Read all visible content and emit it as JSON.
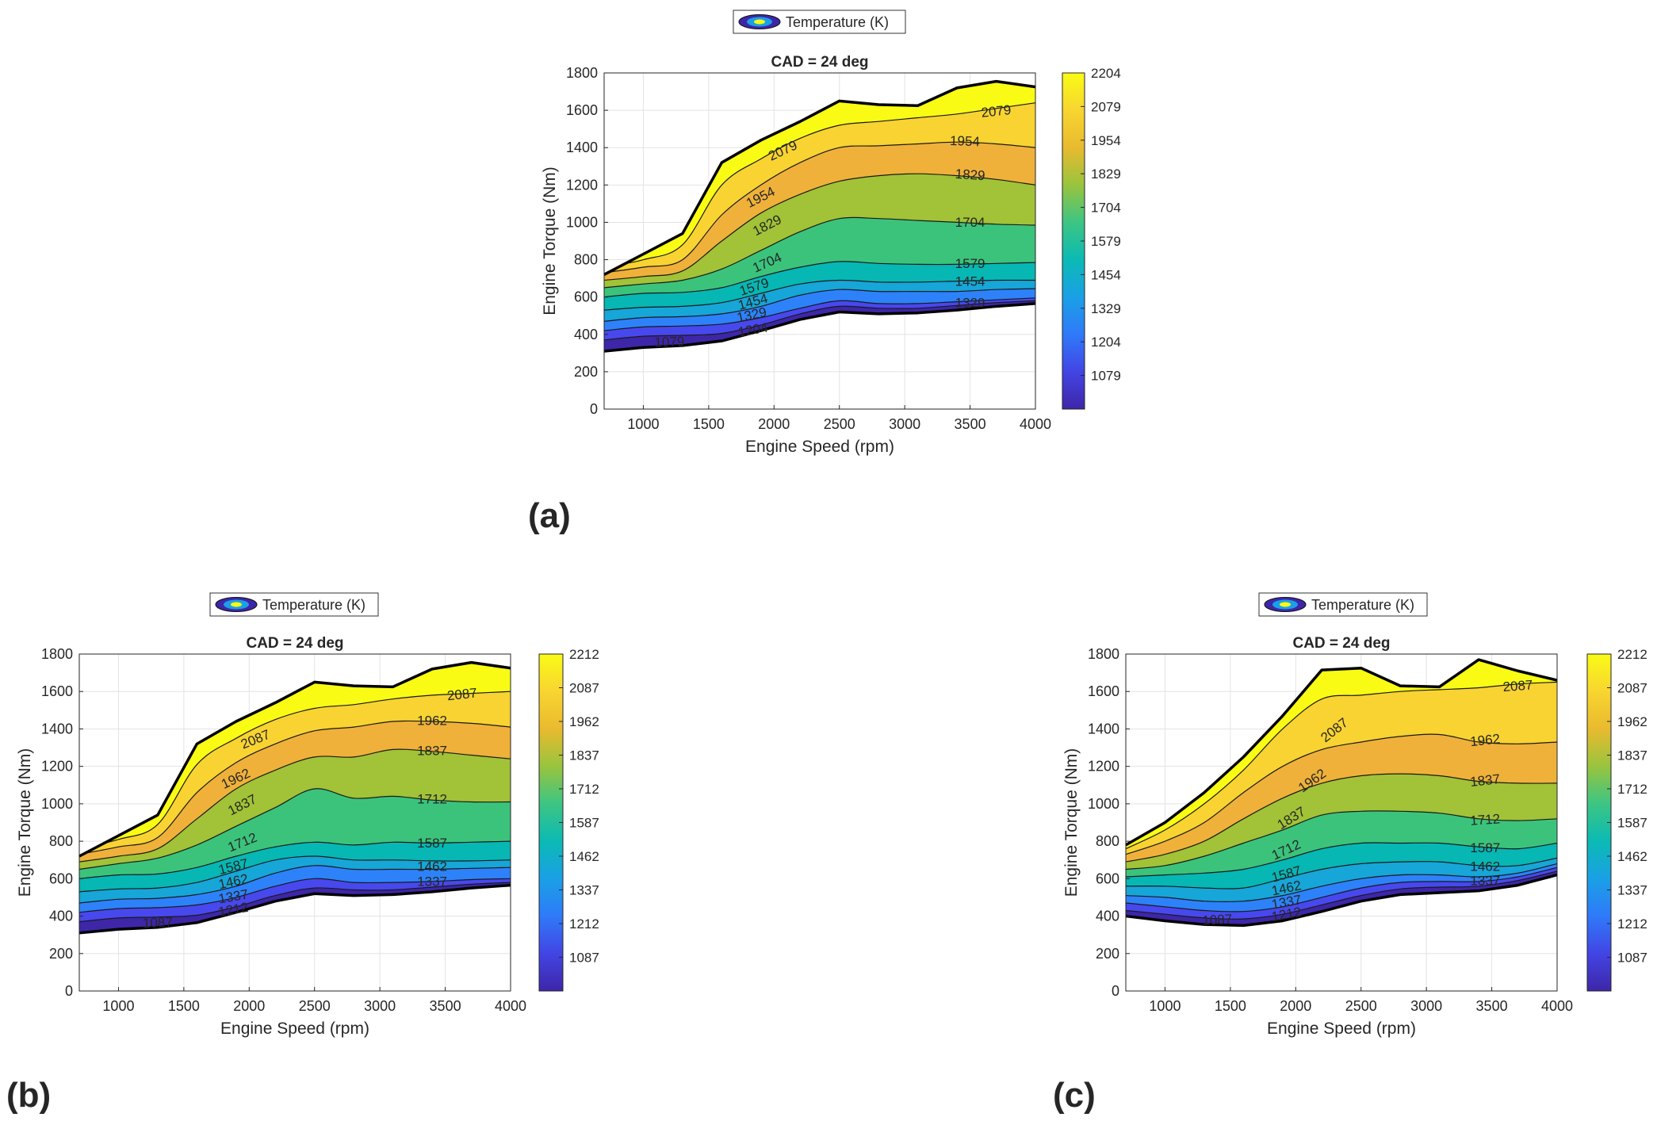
{
  "chart_data": [
    {
      "id": "a",
      "panel_label": "(a)",
      "type": "contourf",
      "title": "CAD = 24 deg",
      "xlabel": "Engine Speed (rpm)",
      "ylabel": "Engine Torque (Nm)",
      "xlim": [
        700,
        4000
      ],
      "ylim": [
        0,
        1800
      ],
      "xticks": [
        1000,
        1500,
        2000,
        2500,
        3000,
        3500,
        4000
      ],
      "yticks": [
        0,
        200,
        400,
        600,
        800,
        1000,
        1200,
        1400,
        1600,
        1800
      ],
      "grid": true,
      "legend": {
        "label": "Temperature (K)",
        "position": "top-center"
      },
      "colorbar": {
        "min": 954,
        "max": 2204,
        "ticks": [
          1079,
          1204,
          1329,
          1454,
          1579,
          1704,
          1829,
          1954,
          2079,
          2204
        ]
      },
      "levels": [
        1079,
        1204,
        1329,
        1454,
        1579,
        1704,
        1829,
        1954,
        2079
      ],
      "x": [
        700,
        1000,
        1300,
        1600,
        1900,
        2200,
        2500,
        2800,
        3100,
        3400,
        3700,
        4000
      ],
      "boundary_upper": [
        720,
        830,
        940,
        1320,
        1440,
        1540,
        1650,
        1630,
        1625,
        1720,
        1755,
        1725
      ],
      "boundary_lower": [
        310,
        330,
        340,
        365,
        420,
        480,
        520,
        510,
        515,
        530,
        550,
        565
      ],
      "contours": [
        {
          "level": 1079,
          "y": [
            370,
            390,
            395,
            405,
            450,
            510,
            550,
            540,
            540,
            555,
            570,
            580
          ]
        },
        {
          "level": 1204,
          "y": [
            420,
            440,
            445,
            455,
            490,
            540,
            580,
            565,
            565,
            575,
            585,
            595
          ]
        },
        {
          "level": 1329,
          "y": [
            470,
            490,
            495,
            510,
            550,
            610,
            640,
            630,
            630,
            630,
            640,
            645
          ]
        },
        {
          "level": 1454,
          "y": [
            530,
            545,
            550,
            570,
            620,
            670,
            690,
            680,
            680,
            685,
            690,
            690
          ]
        },
        {
          "level": 1579,
          "y": [
            600,
            620,
            625,
            650,
            710,
            760,
            790,
            780,
            775,
            775,
            780,
            785
          ]
        },
        {
          "level": 1704,
          "y": [
            650,
            670,
            690,
            750,
            850,
            950,
            1020,
            1020,
            1010,
            1000,
            990,
            985
          ]
        },
        {
          "level": 1829,
          "y": [
            690,
            710,
            740,
            900,
            1050,
            1150,
            1220,
            1250,
            1260,
            1250,
            1230,
            1200
          ]
        },
        {
          "level": 1954,
          "y": [
            730,
            760,
            800,
            1040,
            1200,
            1320,
            1400,
            1410,
            1420,
            1430,
            1420,
            1400
          ]
        },
        {
          "level": 2079,
          "y": [
            760,
            800,
            880,
            1200,
            1340,
            1450,
            1520,
            1540,
            1560,
            1580,
            1610,
            1640
          ]
        }
      ],
      "contour_labels": [
        {
          "text": "2079",
          "x": 3700,
          "y": 1590,
          "angle": -6
        },
        {
          "text": "1954",
          "x": 3460,
          "y": 1430,
          "angle": 2
        },
        {
          "text": "1829",
          "x": 3500,
          "y": 1250,
          "angle": 4
        },
        {
          "text": "1704",
          "x": 3500,
          "y": 995,
          "angle": 0
        },
        {
          "text": "1579",
          "x": 3500,
          "y": 775,
          "angle": 0
        },
        {
          "text": "1454",
          "x": 3500,
          "y": 680,
          "angle": 0
        },
        {
          "text": "1329",
          "x": 3500,
          "y": 565,
          "angle": 0
        },
        {
          "text": "2079",
          "x": 2070,
          "y": 1380,
          "angle": -25
        },
        {
          "text": "1954",
          "x": 1900,
          "y": 1130,
          "angle": -27
        },
        {
          "text": "1829",
          "x": 1950,
          "y": 980,
          "angle": -27
        },
        {
          "text": "1704",
          "x": 1950,
          "y": 780,
          "angle": -24
        },
        {
          "text": "1579",
          "x": 1850,
          "y": 650,
          "angle": -18
        },
        {
          "text": "1454",
          "x": 1840,
          "y": 570,
          "angle": -15
        },
        {
          "text": "1329",
          "x": 1830,
          "y": 500,
          "angle": -12
        },
        {
          "text": "1204",
          "x": 1840,
          "y": 420,
          "angle": -10
        },
        {
          "text": "1079",
          "x": 1200,
          "y": 355,
          "angle": -2
        }
      ]
    },
    {
      "id": "b",
      "panel_label": "(b)",
      "type": "contourf",
      "title": "CAD = 24 deg",
      "xlabel": "Engine Speed (rpm)",
      "ylabel": "Engine Torque (Nm)",
      "xlim": [
        700,
        4000
      ],
      "ylim": [
        0,
        1800
      ],
      "xticks": [
        1000,
        1500,
        2000,
        2500,
        3000,
        3500,
        4000
      ],
      "yticks": [
        0,
        200,
        400,
        600,
        800,
        1000,
        1200,
        1400,
        1600,
        1800
      ],
      "grid": true,
      "legend": {
        "label": "Temperature (K)",
        "position": "top-center"
      },
      "colorbar": {
        "min": 962,
        "max": 2212,
        "ticks": [
          1087,
          1212,
          1337,
          1462,
          1587,
          1712,
          1837,
          1962,
          2087,
          2212
        ]
      },
      "levels": [
        1087,
        1212,
        1337,
        1462,
        1587,
        1712,
        1837,
        1962,
        2087
      ],
      "x": [
        700,
        1000,
        1300,
        1600,
        1900,
        2200,
        2500,
        2800,
        3100,
        3400,
        3700,
        4000
      ],
      "boundary_upper": [
        720,
        830,
        940,
        1320,
        1440,
        1540,
        1650,
        1630,
        1625,
        1720,
        1755,
        1725
      ],
      "boundary_lower": [
        310,
        330,
        340,
        365,
        420,
        480,
        520,
        510,
        515,
        530,
        550,
        565
      ],
      "contours": [
        {
          "level": 1087,
          "y": [
            370,
            390,
            395,
            405,
            450,
            510,
            550,
            540,
            540,
            555,
            570,
            580
          ]
        },
        {
          "level": 1212,
          "y": [
            420,
            440,
            445,
            460,
            500,
            560,
            600,
            580,
            580,
            585,
            595,
            600
          ]
        },
        {
          "level": 1337,
          "y": [
            470,
            490,
            495,
            515,
            560,
            630,
            670,
            650,
            650,
            650,
            655,
            660
          ]
        },
        {
          "level": 1462,
          "y": [
            530,
            545,
            550,
            580,
            640,
            700,
            720,
            700,
            700,
            695,
            695,
            700
          ]
        },
        {
          "level": 1587,
          "y": [
            600,
            620,
            625,
            660,
            720,
            770,
            795,
            780,
            795,
            790,
            795,
            800
          ]
        },
        {
          "level": 1712,
          "y": [
            650,
            680,
            710,
            780,
            880,
            980,
            1080,
            1030,
            1040,
            1020,
            1010,
            1010
          ]
        },
        {
          "level": 1837,
          "y": [
            690,
            720,
            760,
            920,
            1080,
            1180,
            1250,
            1250,
            1290,
            1280,
            1260,
            1240
          ]
        },
        {
          "level": 1962,
          "y": [
            730,
            770,
            820,
            1060,
            1220,
            1320,
            1390,
            1410,
            1440,
            1440,
            1430,
            1410
          ]
        },
        {
          "level": 2087,
          "y": [
            760,
            810,
            890,
            1210,
            1350,
            1450,
            1510,
            1530,
            1560,
            1580,
            1590,
            1600
          ]
        }
      ],
      "contour_labels": [
        {
          "text": "2087",
          "x": 3630,
          "y": 1580,
          "angle": -6
        },
        {
          "text": "1962",
          "x": 3400,
          "y": 1440,
          "angle": 0
        },
        {
          "text": "1837",
          "x": 3400,
          "y": 1280,
          "angle": 0
        },
        {
          "text": "1712",
          "x": 3400,
          "y": 1020,
          "angle": 0
        },
        {
          "text": "1587",
          "x": 3400,
          "y": 785,
          "angle": 0
        },
        {
          "text": "1462",
          "x": 3400,
          "y": 660,
          "angle": 0
        },
        {
          "text": "1337",
          "x": 3400,
          "y": 580,
          "angle": 0
        },
        {
          "text": "2087",
          "x": 2050,
          "y": 1340,
          "angle": -22
        },
        {
          "text": "1962",
          "x": 1900,
          "y": 1130,
          "angle": -25
        },
        {
          "text": "1837",
          "x": 1950,
          "y": 990,
          "angle": -27
        },
        {
          "text": "1712",
          "x": 1950,
          "y": 790,
          "angle": -22
        },
        {
          "text": "1587",
          "x": 1880,
          "y": 660,
          "angle": -14
        },
        {
          "text": "1462",
          "x": 1880,
          "y": 580,
          "angle": -12
        },
        {
          "text": "1337",
          "x": 1880,
          "y": 500,
          "angle": -10
        },
        {
          "text": "1212",
          "x": 1880,
          "y": 430,
          "angle": -10
        },
        {
          "text": "1087",
          "x": 1300,
          "y": 360,
          "angle": -2
        }
      ]
    },
    {
      "id": "c",
      "panel_label": "(c)",
      "type": "contourf",
      "title": "CAD = 24 deg",
      "xlabel": "Engine Speed (rpm)",
      "ylabel": "Engine Torque (Nm)",
      "xlim": [
        700,
        4000
      ],
      "ylim": [
        0,
        1800
      ],
      "xticks": [
        1000,
        1500,
        2000,
        2500,
        3000,
        3500,
        4000
      ],
      "yticks": [
        0,
        200,
        400,
        600,
        800,
        1000,
        1200,
        1400,
        1600,
        1800
      ],
      "grid": true,
      "legend": {
        "label": "Temperature (K)",
        "position": "top-center"
      },
      "colorbar": {
        "min": 962,
        "max": 2212,
        "ticks": [
          1087,
          1212,
          1337,
          1462,
          1587,
          1712,
          1837,
          1962,
          2087,
          2212
        ]
      },
      "levels": [
        1087,
        1212,
        1337,
        1462,
        1587,
        1712,
        1837,
        1962,
        2087
      ],
      "x": [
        700,
        1000,
        1300,
        1600,
        1900,
        2200,
        2500,
        2800,
        3100,
        3400,
        3700,
        4000
      ],
      "boundary_upper": [
        780,
        900,
        1060,
        1250,
        1470,
        1715,
        1725,
        1630,
        1625,
        1770,
        1710,
        1660
      ],
      "boundary_lower": [
        400,
        375,
        355,
        350,
        375,
        425,
        480,
        515,
        525,
        535,
        565,
        620
      ],
      "contours": [
        {
          "level": 1087,
          "y": [
            430,
            410,
            390,
            385,
            410,
            460,
            510,
            545,
            555,
            560,
            590,
            640
          ]
        },
        {
          "level": 1212,
          "y": [
            470,
            450,
            430,
            425,
            450,
            500,
            550,
            580,
            585,
            585,
            610,
            660
          ]
        },
        {
          "level": 1337,
          "y": [
            510,
            500,
            480,
            480,
            510,
            560,
            600,
            620,
            620,
            610,
            630,
            680
          ]
        },
        {
          "level": 1462,
          "y": [
            560,
            560,
            550,
            550,
            600,
            650,
            680,
            690,
            690,
            670,
            670,
            710
          ]
        },
        {
          "level": 1587,
          "y": [
            610,
            620,
            630,
            650,
            700,
            760,
            790,
            790,
            790,
            770,
            760,
            790
          ]
        },
        {
          "level": 1712,
          "y": [
            650,
            670,
            720,
            790,
            860,
            940,
            960,
            960,
            950,
            920,
            910,
            920
          ]
        },
        {
          "level": 1837,
          "y": [
            690,
            730,
            800,
            920,
            1030,
            1110,
            1150,
            1160,
            1150,
            1120,
            1110,
            1110
          ]
        },
        {
          "level": 1962,
          "y": [
            730,
            800,
            900,
            1060,
            1200,
            1290,
            1330,
            1360,
            1370,
            1330,
            1320,
            1330
          ]
        },
        {
          "level": 2087,
          "y": [
            760,
            860,
            1000,
            1180,
            1400,
            1560,
            1580,
            1600,
            1610,
            1620,
            1640,
            1650
          ]
        }
      ],
      "contour_labels": [
        {
          "text": "2087",
          "x": 3700,
          "y": 1625,
          "angle": -4
        },
        {
          "text": "1962",
          "x": 3450,
          "y": 1335,
          "angle": -6
        },
        {
          "text": "1837",
          "x": 3450,
          "y": 1120,
          "angle": -6
        },
        {
          "text": "1712",
          "x": 3450,
          "y": 910,
          "angle": -4
        },
        {
          "text": "1587",
          "x": 3450,
          "y": 760,
          "angle": 0
        },
        {
          "text": "1462",
          "x": 3450,
          "y": 660,
          "angle": 0
        },
        {
          "text": "1337",
          "x": 3450,
          "y": 585,
          "angle": 0
        },
        {
          "text": "2087",
          "x": 2300,
          "y": 1390,
          "angle": -38
        },
        {
          "text": "1962",
          "x": 2130,
          "y": 1120,
          "angle": -35
        },
        {
          "text": "1837",
          "x": 1970,
          "y": 920,
          "angle": -32
        },
        {
          "text": "1712",
          "x": 1930,
          "y": 750,
          "angle": -25
        },
        {
          "text": "1587",
          "x": 1930,
          "y": 620,
          "angle": -15
        },
        {
          "text": "1462",
          "x": 1930,
          "y": 545,
          "angle": -12
        },
        {
          "text": "1337",
          "x": 1930,
          "y": 470,
          "angle": -10
        },
        {
          "text": "1212",
          "x": 1930,
          "y": 405,
          "angle": -10
        },
        {
          "text": "1087",
          "x": 1400,
          "y": 375,
          "angle": -3
        }
      ]
    }
  ],
  "colormap": [
    "#3e26a8",
    "#4748ee",
    "#2d82fa",
    "#16a6d8",
    "#06b7b4",
    "#3bc37c",
    "#a2c237",
    "#efb13a",
    "#f8d331",
    "#f9fb15"
  ]
}
